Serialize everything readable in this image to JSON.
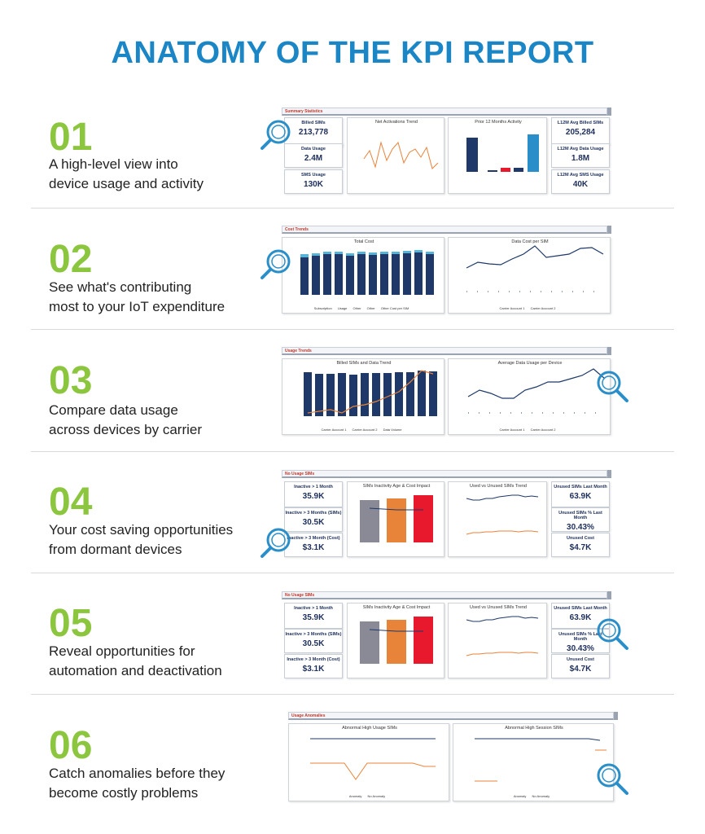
{
  "title": "ANATOMY OF THE KPI REPORT",
  "sections": [
    {
      "number": "01",
      "lines": [
        "A high-level view into",
        "device usage and activity"
      ],
      "header": "Summary Statistics",
      "cards_left": [
        {
          "label": "Billed SIMs",
          "value": "213,778"
        },
        {
          "label": "Data Usage",
          "value": "2.4M"
        },
        {
          "label": "SMS Usage",
          "value": "130K"
        }
      ],
      "cards_right": [
        {
          "label": "L12M Avg Billed SIMs",
          "value": "205,284"
        },
        {
          "label": "L12M Avg Data Usage",
          "value": "1.8M"
        },
        {
          "label": "L12M Avg SMS Usage",
          "value": "40K"
        }
      ],
      "chart_titles": [
        "Net Activations Trend",
        "Prior 12 Months Activity"
      ]
    },
    {
      "number": "02",
      "lines": [
        "See what's contributing",
        "most to your IoT expenditure"
      ],
      "header": "Cost Trends",
      "chart_titles": [
        "Total Cost",
        "Data Cost per SIM"
      ],
      "legend_left": [
        "Subscription",
        "Usage",
        "Other",
        "Other",
        "Other Cost per SIM"
      ],
      "legend_right": [
        "Carrier Account 1",
        "Carrier Account 2"
      ]
    },
    {
      "number": "03",
      "lines": [
        "Compare data usage",
        "across devices by carrier"
      ],
      "header": "Usage Trends",
      "chart_titles": [
        "Billed SIMs and Data Trend",
        "Average Data Usage per Device"
      ],
      "legend_left": [
        "Carrier Account 1",
        "Carrier Account 2",
        "Data Volume"
      ],
      "legend_right": [
        "Carrier Account 1",
        "Carrier Account 2"
      ]
    },
    {
      "number": "04",
      "lines": [
        "Your cost saving opportunities",
        "from dormant devices"
      ],
      "header": "No Usage SIMs",
      "cards_left": [
        {
          "label": "Inactive > 1 Month",
          "value": "35.9K"
        },
        {
          "label": "Inactive > 3 Months (SIMs)",
          "value": "30.5K"
        },
        {
          "label": "Inactive > 3 Month (Cost)",
          "value": "$3.1K"
        }
      ],
      "cards_right": [
        {
          "label": "Unused SIMs Last Month",
          "value": "63.9K"
        },
        {
          "label": "Unused SIMs % Last Month",
          "value": "30.43%"
        },
        {
          "label": "Unused Cost",
          "value": "$4.7K"
        }
      ],
      "chart_titles": [
        "SIMs Inactivity Age & Cost Impact",
        "Used vs Unused SIMs Trend"
      ]
    },
    {
      "number": "05",
      "lines": [
        "Reveal opportunities for",
        "automation and deactivation"
      ],
      "header": "No Usage SIMs",
      "cards_left": [
        {
          "label": "Inactive > 1 Month",
          "value": "35.9K"
        },
        {
          "label": "Inactive > 3 Months (SIMs)",
          "value": "30.5K"
        },
        {
          "label": "Inactive > 3 Month (Cost)",
          "value": "$3.1K"
        }
      ],
      "cards_right": [
        {
          "label": "Unused SIMs Last Month",
          "value": "63.9K"
        },
        {
          "label": "Unused SIMs % Last Month",
          "value": "30.43%"
        },
        {
          "label": "Unused Cost",
          "value": "$4.7K"
        }
      ],
      "chart_titles": [
        "SIMs Inactivity Age & Cost Impact",
        "Used vs Unused SIMs Trend"
      ]
    },
    {
      "number": "06",
      "lines": [
        "Catch anomalies before they",
        "become costly problems"
      ],
      "header": "Usage Anomalies",
      "chart_titles": [
        "Abnormal High Usage SIMs",
        "Abnormal High Session SIMs"
      ],
      "legend": [
        "Anomaly",
        "No Anomaly"
      ]
    }
  ],
  "months": [
    "Apr 2020",
    "May 2020",
    "Jun 2020",
    "Jul 2020",
    "Aug 2020",
    "Sep 2020",
    "Oct 2020",
    "Nov 2020",
    "Dec 2020",
    "Jan 2021",
    "Feb 2021",
    "Mar 2021"
  ],
  "colors": {
    "title": "#1a86c6",
    "number": "#8cc63f",
    "navy": "#1d3869",
    "orange": "#e8833a",
    "red": "#e8192c",
    "gray": "#8a8a96",
    "magnifier": "#2a8fc9"
  }
}
